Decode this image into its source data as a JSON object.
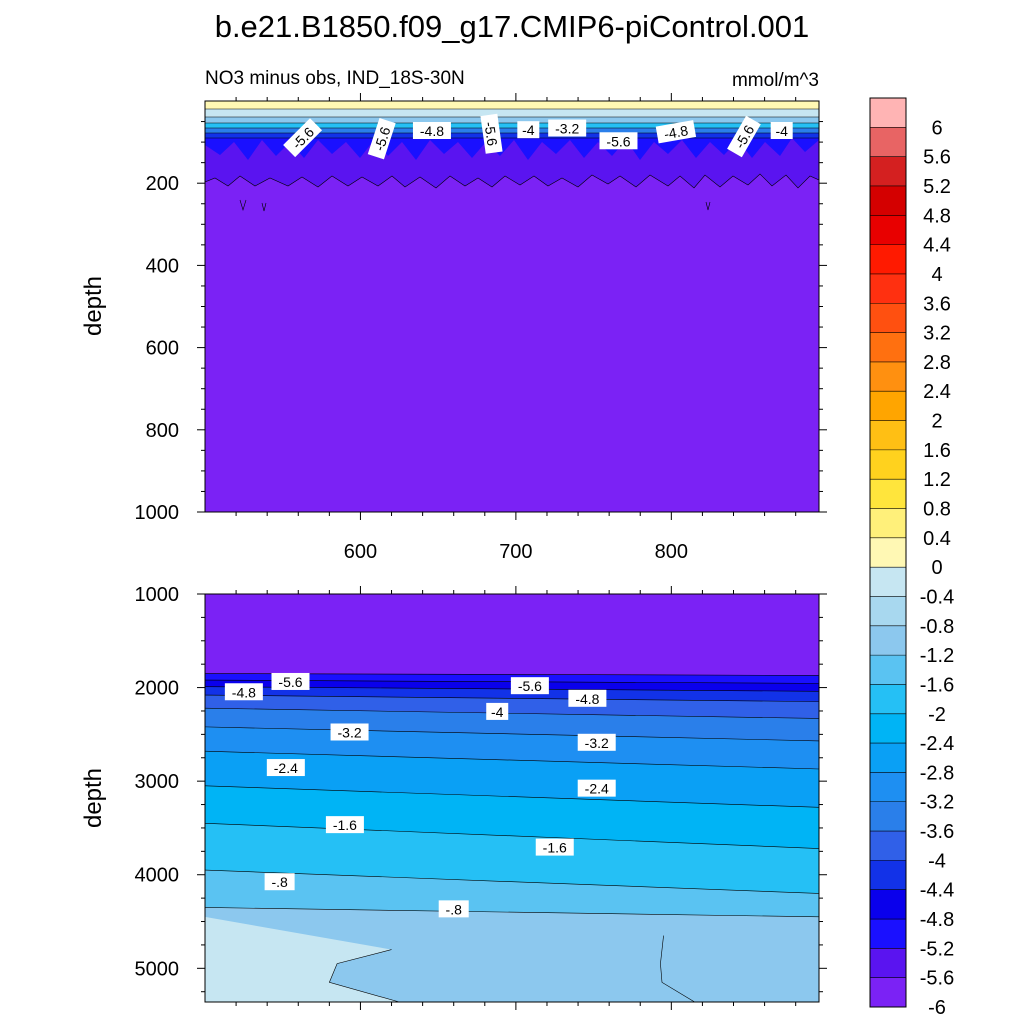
{
  "title": "b.e21.B1850.f09_g17.CMIP6-piControl.001",
  "colors": [
    "#7b22f5",
    "#5a14f0",
    "#1a10ff",
    "#0a00ec",
    "#1232e8",
    "#3060e8",
    "#2a7fea",
    "#1e8ff2",
    "#0aa0f5",
    "#00b4f5",
    "#25c0f5",
    "#5ac3f2",
    "#8cc8ee",
    "#a8d8ef",
    "#c6e6f2",
    "#fff8b4",
    "#fff07a",
    "#ffe53c",
    "#ffd21e",
    "#ffbf14",
    "#ffa500",
    "#ff9010",
    "#ff7010",
    "#ff5010",
    "#ff3010",
    "#ff1a00",
    "#e80000",
    "#d40000",
    "#d42020",
    "#e86464",
    "#ffb4b4"
  ],
  "chart_data": {
    "type": "contour",
    "title": "b.e21.B1850.f09_g17.CMIP6-piControl.001",
    "subtitle_left": "NO3 minus obs, IND_18S-30N",
    "subtitle_right": "mmol/m^3",
    "ylabel": "depth",
    "colorbar": {
      "levels": [
        "6",
        "5.6",
        "5.2",
        "4.8",
        "4.4",
        "4",
        "3.6",
        "3.2",
        "2.8",
        "2.4",
        "2",
        "1.6",
        "1.2",
        "0.8",
        "0.4",
        "0",
        "-0.4",
        "-0.8",
        "-1.2",
        "-1.6",
        "-2",
        "-2.4",
        "-2.8",
        "-3.2",
        "-3.6",
        "-4",
        "-4.4",
        "-4.8",
        "-5.2",
        "-5.6",
        "-6"
      ]
    },
    "panels": [
      {
        "name": "upper",
        "xlim": [
          500,
          895
        ],
        "ylim": [
          0,
          1000
        ],
        "yticks": [
          "200",
          "400",
          "600",
          "800",
          "1000"
        ],
        "xticks": [
          "600",
          "700",
          "800"
        ],
        "contour_labels": [
          {
            "text": "-5.6",
            "x": 563,
            "y": 90,
            "rot": -45
          },
          {
            "text": "-5.6",
            "x": 614,
            "y": 92,
            "rot": -72
          },
          {
            "text": "-4.8",
            "x": 646,
            "y": 73,
            "rot": 0
          },
          {
            "text": "-5.6",
            "x": 684,
            "y": 80,
            "rot": 82
          },
          {
            "text": "-4",
            "x": 708,
            "y": 71,
            "rot": 0
          },
          {
            "text": "-3.2",
            "x": 733,
            "y": 67,
            "rot": 0
          },
          {
            "text": "-5.6",
            "x": 766,
            "y": 98,
            "rot": 0
          },
          {
            "text": "-4.8",
            "x": 803,
            "y": 76,
            "rot": -10
          },
          {
            "text": "-5.6",
            "x": 847,
            "y": 87,
            "rot": -60
          },
          {
            "text": "-4",
            "x": 871,
            "y": 73,
            "rot": 0
          }
        ]
      },
      {
        "name": "lower",
        "xlim": [
          500,
          895
        ],
        "ylim": [
          1000,
          5360
        ],
        "yticks": [
          "1000",
          "2000",
          "3000",
          "4000",
          "5000"
        ],
        "contour_labels": [
          {
            "text": "-5.6",
            "x": 555,
            "y": 1940,
            "rot": 0
          },
          {
            "text": "-4.8",
            "x": 525,
            "y": 2050,
            "rot": 0
          },
          {
            "text": "-5.6",
            "x": 709,
            "y": 1985,
            "rot": 0
          },
          {
            "text": "-4.8",
            "x": 746,
            "y": 2120,
            "rot": 0
          },
          {
            "text": "-4",
            "x": 688,
            "y": 2260,
            "rot": 0
          },
          {
            "text": "-3.2",
            "x": 593,
            "y": 2480,
            "rot": 0
          },
          {
            "text": "-3.2",
            "x": 752,
            "y": 2590,
            "rot": 0
          },
          {
            "text": "-2.4",
            "x": 552,
            "y": 2860,
            "rot": 0
          },
          {
            "text": "-2.4",
            "x": 752,
            "y": 3080,
            "rot": 0
          },
          {
            "text": "-1.6",
            "x": 590,
            "y": 3470,
            "rot": 0
          },
          {
            "text": "-1.6",
            "x": 725,
            "y": 3710,
            "rot": 0
          },
          {
            "text": "-.8",
            "x": 548,
            "y": 4080,
            "rot": 0
          },
          {
            "text": "-.8",
            "x": 660,
            "y": 4370,
            "rot": 0
          }
        ]
      }
    ]
  }
}
